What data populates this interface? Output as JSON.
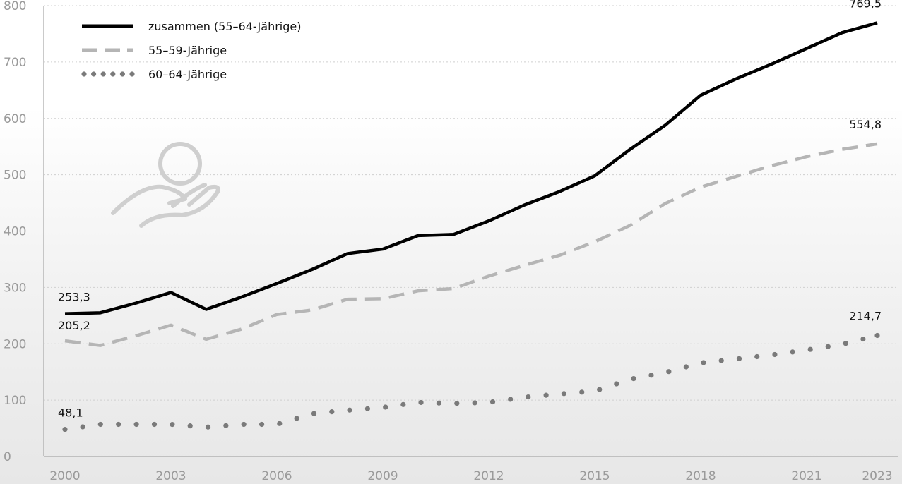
{
  "chart_data": {
    "type": "line",
    "title": "",
    "xlabel": "",
    "ylabel": "",
    "x": [
      2000,
      2001,
      2002,
      2003,
      2004,
      2005,
      2006,
      2007,
      2008,
      2009,
      2010,
      2011,
      2012,
      2013,
      2014,
      2015,
      2016,
      2017,
      2018,
      2019,
      2020,
      2021,
      2022,
      2023
    ],
    "xticks": [
      "2000",
      "2003",
      "2006",
      "2009",
      "2012",
      "2015",
      "2018",
      "2021",
      "2023"
    ],
    "xlim": [
      2000,
      2023
    ],
    "ylim": [
      0,
      800
    ],
    "yticks": [
      "0",
      "100",
      "200",
      "300",
      "400",
      "500",
      "600",
      "700",
      "800"
    ],
    "grid": "horizontal dotted",
    "legend_position": "top-left",
    "series": [
      {
        "name": "zusammen (55–64-Jährige)",
        "style": "solid",
        "color": "#000000",
        "values": [
          253.3,
          255,
          272,
          291,
          261,
          283,
          307,
          332,
          360,
          368,
          392,
          394,
          418,
          446,
          470,
          498,
          545,
          588,
          641,
          670,
          696,
          724,
          752,
          769.5
        ]
      },
      {
        "name": "55–59-Jährige",
        "style": "dashed",
        "color": "#b5b5b5",
        "values": [
          205.2,
          197,
          214,
          233,
          208,
          226,
          252,
          260,
          279,
          280,
          294,
          298,
          320,
          339,
          357,
          381,
          410,
          449,
          478,
          497,
          516,
          532,
          545,
          554.8
        ]
      },
      {
        "name": "60–64-Jährige",
        "style": "dotted",
        "color": "#7a7a7a",
        "values": [
          48.1,
          57,
          57,
          57,
          52,
          57,
          57,
          76,
          82,
          87,
          96,
          94,
          96,
          105,
          111,
          116,
          137,
          149,
          166,
          173,
          180,
          189,
          199,
          214.7
        ]
      }
    ],
    "data_labels": [
      {
        "series": 0,
        "index": 0,
        "text": "253,3"
      },
      {
        "series": 1,
        "index": 0,
        "text": "205,2"
      },
      {
        "series": 2,
        "index": 0,
        "text": "48,1"
      },
      {
        "series": 0,
        "index": 23,
        "text": "769,5"
      },
      {
        "series": 1,
        "index": 23,
        "text": "554,8"
      },
      {
        "series": 2,
        "index": 23,
        "text": "214,7"
      }
    ]
  }
}
